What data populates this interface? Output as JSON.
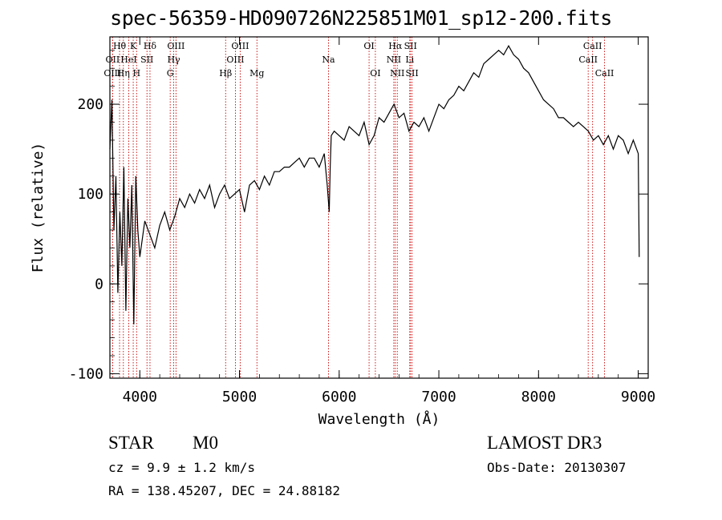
{
  "chart_data": {
    "type": "line",
    "title": "spec-56359-HD090726N225851M01_sp12-200.fits",
    "xlabel": "Wavelength (Å)",
    "ylabel": "Flux (relative)",
    "xlim": [
      3700,
      9100
    ],
    "ylim": [
      -105,
      275
    ],
    "x_ticks": [
      4000,
      5000,
      6000,
      7000,
      8000,
      9000
    ],
    "y_ticks": [
      -100,
      0,
      100,
      200
    ],
    "series": [
      {
        "name": "spectrum",
        "x": [
          3700,
          3720,
          3740,
          3760,
          3780,
          3800,
          3820,
          3840,
          3860,
          3880,
          3900,
          3920,
          3940,
          3960,
          3980,
          4000,
          4050,
          4100,
          4150,
          4200,
          4250,
          4300,
          4350,
          4400,
          4450,
          4500,
          4550,
          4600,
          4650,
          4700,
          4750,
          4800,
          4850,
          4900,
          4950,
          5000,
          5050,
          5100,
          5150,
          5200,
          5250,
          5300,
          5350,
          5400,
          5450,
          5500,
          5550,
          5600,
          5650,
          5700,
          5750,
          5800,
          5850,
          5880,
          5900,
          5910,
          5920,
          5950,
          6000,
          6050,
          6100,
          6150,
          6200,
          6250,
          6300,
          6350,
          6400,
          6450,
          6500,
          6550,
          6600,
          6650,
          6700,
          6750,
          6800,
          6850,
          6900,
          6950,
          7000,
          7050,
          7100,
          7150,
          7200,
          7250,
          7300,
          7350,
          7400,
          7450,
          7500,
          7550,
          7600,
          7650,
          7700,
          7750,
          7800,
          7850,
          7900,
          7950,
          8000,
          8050,
          8100,
          8150,
          8200,
          8250,
          8300,
          8350,
          8400,
          8450,
          8500,
          8550,
          8600,
          8650,
          8700,
          8750,
          8800,
          8850,
          8900,
          8950,
          9000,
          9010
        ],
        "values": [
          150,
          205,
          60,
          120,
          -10,
          80,
          20,
          130,
          -30,
          95,
          40,
          110,
          -45,
          120,
          60,
          30,
          70,
          55,
          40,
          65,
          80,
          60,
          75,
          95,
          85,
          100,
          90,
          105,
          95,
          110,
          85,
          100,
          110,
          95,
          100,
          105,
          80,
          110,
          115,
          105,
          120,
          110,
          125,
          125,
          130,
          130,
          135,
          140,
          130,
          140,
          140,
          130,
          145,
          110,
          80,
          130,
          165,
          170,
          165,
          160,
          175,
          170,
          165,
          180,
          155,
          165,
          185,
          180,
          190,
          200,
          185,
          190,
          170,
          180,
          175,
          185,
          170,
          185,
          200,
          195,
          205,
          210,
          220,
          215,
          225,
          235,
          230,
          245,
          250,
          255,
          260,
          255,
          265,
          255,
          250,
          240,
          235,
          225,
          215,
          205,
          200,
          195,
          185,
          185,
          180,
          175,
          180,
          175,
          170,
          160,
          165,
          155,
          165,
          150,
          165,
          160,
          145,
          160,
          145,
          30
        ]
      }
    ],
    "lines": [
      {
        "label": "Hθ",
        "wl": 3797,
        "row": 1
      },
      {
        "label": "OII",
        "wl": 3727,
        "row": 2
      },
      {
        "label": "OIII",
        "wl": 3727,
        "row": 3
      },
      {
        "label": "K",
        "wl": 3934,
        "row": 1
      },
      {
        "label": "HeI",
        "wl": 3889,
        "row": 2
      },
      {
        "label": "Hη",
        "wl": 3835,
        "row": 3
      },
      {
        "label": "SII",
        "wl": 4072,
        "row": 2
      },
      {
        "label": "H",
        "wl": 3968,
        "row": 3
      },
      {
        "label": "Hδ",
        "wl": 4102,
        "row": 1
      },
      {
        "label": "OIII",
        "wl": 4363,
        "row": 1
      },
      {
        "label": "Hγ",
        "wl": 4340,
        "row": 2
      },
      {
        "label": "G",
        "wl": 4305,
        "row": 3
      },
      {
        "label": "OIII",
        "wl": 5007,
        "row": 1
      },
      {
        "label": "OIII",
        "wl": 4959,
        "row": 2
      },
      {
        "label": "Hβ",
        "wl": 4861,
        "row": 3
      },
      {
        "label": "Mg",
        "wl": 5175,
        "row": 3
      },
      {
        "label": "Na",
        "wl": 5893,
        "row": 2
      },
      {
        "label": "OI",
        "wl": 6300,
        "row": 1
      },
      {
        "label": "OI",
        "wl": 6363,
        "row": 3
      },
      {
        "label": "Hα",
        "wl": 6563,
        "row": 1
      },
      {
        "label": "NII",
        "wl": 6548,
        "row": 2
      },
      {
        "label": "NII",
        "wl": 6583,
        "row": 3
      },
      {
        "label": "SII",
        "wl": 6716,
        "row": 1
      },
      {
        "label": "Li",
        "wl": 6708,
        "row": 2
      },
      {
        "label": "SII",
        "wl": 6731,
        "row": 3
      },
      {
        "label": "CaII",
        "wl": 8542,
        "row": 1
      },
      {
        "label": "CaII",
        "wl": 8498,
        "row": 2
      },
      {
        "label": "CaII",
        "wl": 8662,
        "row": 3
      }
    ],
    "line_color": "#cc0000"
  },
  "footer": {
    "class_label": "STAR",
    "subclass": "M0",
    "survey": "LAMOST DR3",
    "cz": "cz = 9.9 ± 1.2 km/s",
    "obs_date": "Obs-Date: 20130307",
    "coords": "RA = 138.45207, DEC =  24.88182"
  }
}
